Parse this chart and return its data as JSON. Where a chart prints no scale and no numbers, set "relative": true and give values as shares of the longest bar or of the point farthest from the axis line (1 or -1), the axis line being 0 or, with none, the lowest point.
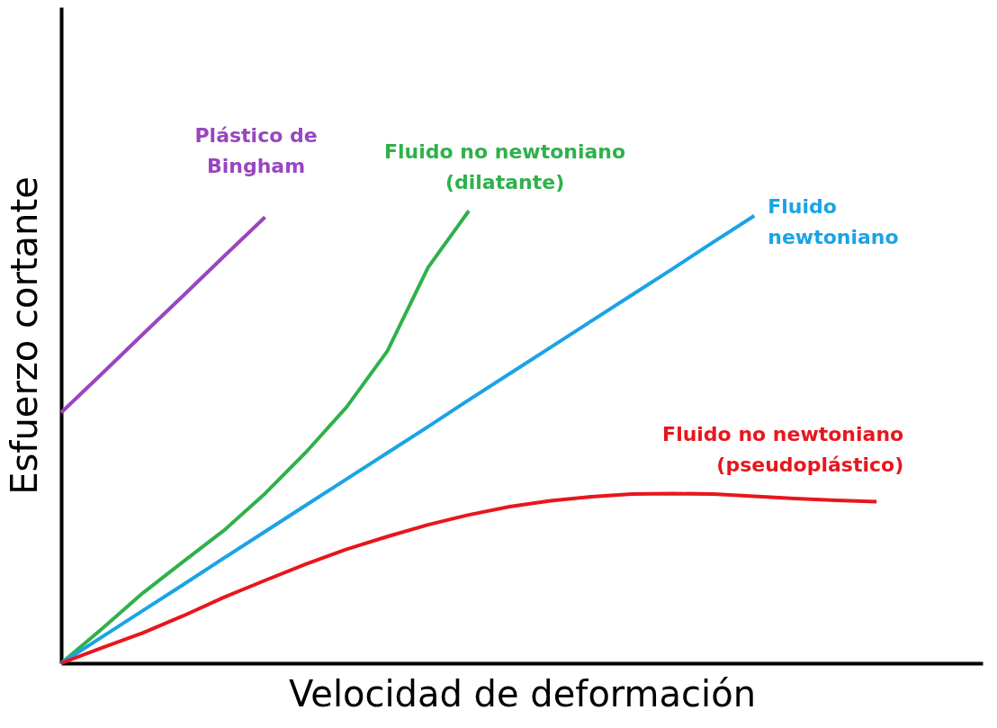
{
  "chart_data": {
    "type": "line",
    "relative": true,
    "xlabel": "Velocidad de deformación",
    "ylabel": "Esfuerzo cortante",
    "grid": false,
    "legend": false,
    "marker": "none",
    "line_style": "solid",
    "categories": [
      null,
      null,
      null,
      null,
      null,
      null,
      null,
      null,
      null,
      null,
      null,
      null,
      null,
      null,
      null,
      null,
      null,
      null,
      null,
      null,
      null
    ],
    "series": [
      {
        "name": "Plástico de\nBingham",
        "color": "#9a45c0",
        "values": [
          0.554,
          0.64,
          0.727,
          0.813,
          0.9,
          0.986,
          null,
          null,
          null,
          null,
          null,
          null,
          null,
          null,
          null,
          null,
          null,
          null,
          null,
          null,
          null
        ]
      },
      {
        "name": "Fluido no newtoniano\n(dilatante)",
        "color": "#2fb14a",
        "values": [
          0,
          0.076,
          0.155,
          0.225,
          0.294,
          0.375,
          0.466,
          0.566,
          0.69,
          0.875,
          1,
          null,
          null,
          null,
          null,
          null,
          null,
          null,
          null,
          null,
          null
        ]
      },
      {
        "name": "Fluido\nnewtoniano",
        "color": "#1ba3e6",
        "values": [
          0,
          0.058,
          0.116,
          0.174,
          0.233,
          0.291,
          0.349,
          0.407,
          0.465,
          0.523,
          0.582,
          0.64,
          0.698,
          0.756,
          0.814,
          0.872,
          0.931,
          0.989,
          null,
          null,
          null
        ]
      },
      {
        "name": "Fluido no newtoniano\n(pseudoplástico)",
        "color": "#e8161d",
        "values": [
          0,
          0.034,
          0.067,
          0.105,
          0.146,
          0.183,
          0.219,
          0.252,
          0.28,
          0.306,
          0.328,
          0.346,
          0.359,
          0.368,
          0.374,
          0.375,
          0.374,
          0.369,
          0.364,
          0.36,
          0.357
        ]
      }
    ]
  }
}
